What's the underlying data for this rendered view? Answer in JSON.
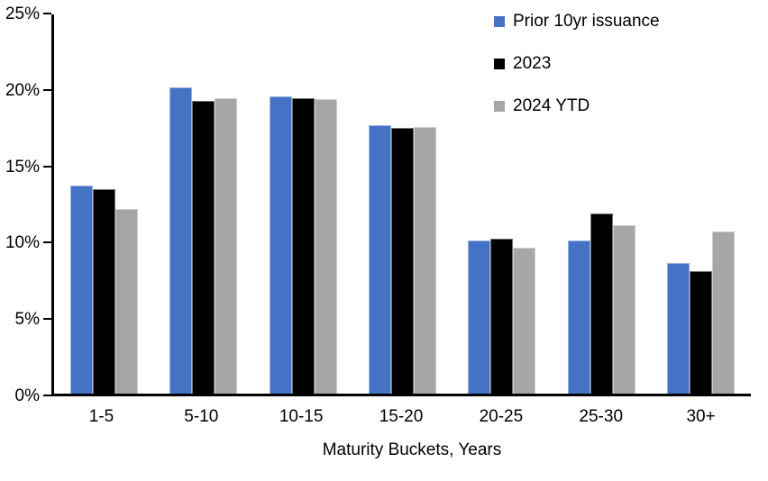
{
  "chart_data": {
    "type": "bar",
    "title": "",
    "xlabel": "Maturity Buckets, Years",
    "ylabel": "",
    "categories": [
      "1-5",
      "5-10",
      "10-15",
      "15-20",
      "20-25",
      "25-30",
      "30+"
    ],
    "series": [
      {
        "name": "Prior 10yr issuance",
        "color": "#4472C4",
        "values": [
          13.7,
          20.2,
          19.6,
          17.7,
          10.1,
          10.1,
          8.6
        ]
      },
      {
        "name": "2023",
        "color": "#000000",
        "values": [
          13.5,
          19.3,
          19.5,
          17.5,
          10.2,
          11.9,
          8.1
        ]
      },
      {
        "name": "2024 YTD",
        "color": "#A6A6A6",
        "values": [
          12.2,
          19.5,
          19.4,
          17.6,
          9.6,
          11.1,
          10.7
        ]
      }
    ],
    "ylim": [
      0,
      25
    ],
    "yticks": [
      0,
      5,
      10,
      15,
      20,
      25
    ],
    "ytick_suffix": "%",
    "legend_position": "top-right",
    "grid": false,
    "axis_color": "#000000",
    "background_color": "#ffffff"
  }
}
